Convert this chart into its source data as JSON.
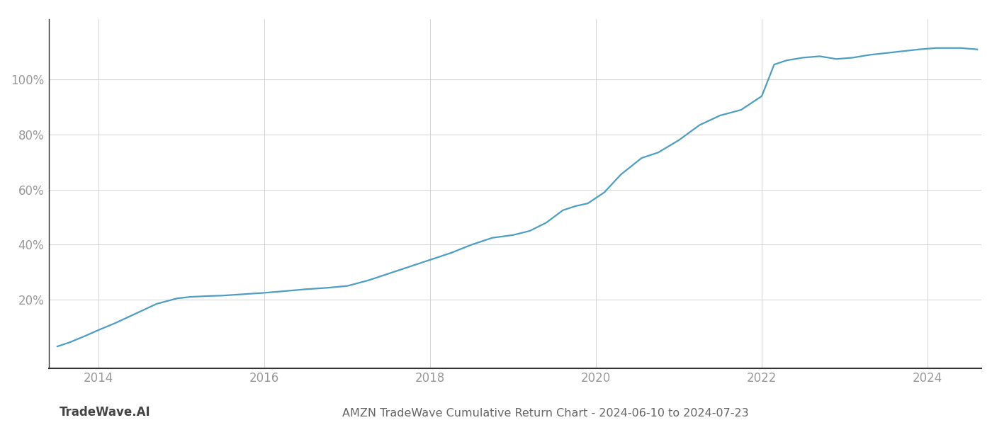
{
  "x_values": [
    2013.5,
    2013.65,
    2013.85,
    2014.0,
    2014.2,
    2014.45,
    2014.7,
    2014.95,
    2015.1,
    2015.3,
    2015.5,
    2015.75,
    2016.0,
    2016.2,
    2016.5,
    2016.75,
    2017.0,
    2017.25,
    2017.5,
    2017.75,
    2018.0,
    2018.25,
    2018.5,
    2018.75,
    2019.0,
    2019.2,
    2019.4,
    2019.6,
    2019.75,
    2019.9,
    2020.1,
    2020.3,
    2020.55,
    2020.75,
    2021.0,
    2021.25,
    2021.5,
    2021.75,
    2022.0,
    2022.15,
    2022.3,
    2022.5,
    2022.7,
    2022.9,
    2023.1,
    2023.3,
    2023.6,
    2023.9,
    2024.1,
    2024.4,
    2024.6
  ],
  "y_values": [
    3.0,
    4.5,
    7.0,
    9.0,
    11.5,
    15.0,
    18.5,
    20.5,
    21.0,
    21.3,
    21.5,
    22.0,
    22.5,
    23.0,
    23.8,
    24.3,
    25.0,
    27.0,
    29.5,
    32.0,
    34.5,
    37.0,
    40.0,
    42.5,
    43.5,
    45.0,
    48.0,
    52.5,
    54.0,
    55.0,
    59.0,
    65.5,
    71.5,
    73.5,
    78.0,
    83.5,
    87.0,
    89.0,
    94.0,
    105.5,
    107.0,
    108.0,
    108.5,
    107.5,
    108.0,
    109.0,
    110.0,
    111.0,
    111.5,
    111.5,
    111.0
  ],
  "line_color": "#4d9ec5",
  "line_width": 1.6,
  "background_color": "#ffffff",
  "grid_color": "#cccccc",
  "title": "AMZN TradeWave Cumulative Return Chart - 2024-06-10 to 2024-07-23",
  "title_fontsize": 11.5,
  "title_color": "#666666",
  "watermark": "TradeWave.AI",
  "watermark_fontsize": 12,
  "watermark_color": "#444444",
  "xlim": [
    2013.4,
    2024.65
  ],
  "ylim": [
    -5,
    122
  ],
  "xticks": [
    2014,
    2016,
    2018,
    2020,
    2022,
    2024
  ],
  "yticks": [
    20,
    40,
    60,
    80,
    100
  ],
  "tick_fontsize": 12,
  "tick_color": "#999999",
  "left_spine_color": "#333333",
  "bottom_spine_color": "#333333"
}
